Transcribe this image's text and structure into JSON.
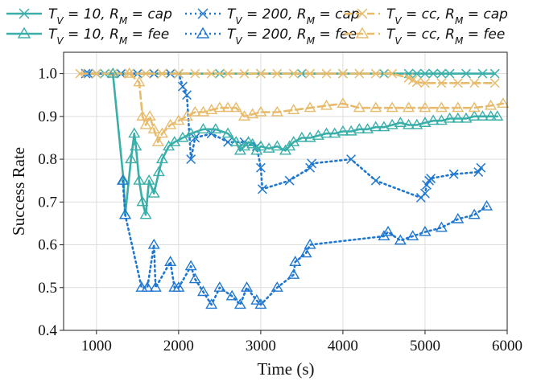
{
  "chart_data": {
    "type": "line",
    "xlabel": "Time (s)",
    "ylabel": "Success Rate",
    "xlim": [
      600,
      6000
    ],
    "ylim": [
      0.4,
      1.05
    ],
    "xticks": [
      1000,
      2000,
      3000,
      4000,
      5000,
      6000
    ],
    "yticks": [
      0.4,
      0.5,
      0.6,
      0.7,
      0.8,
      0.9,
      1.0
    ],
    "xtick_labels": [
      "1000",
      "2000",
      "3000",
      "4000",
      "5000",
      "6000"
    ],
    "ytick_labels": [
      "0.4",
      "0.5",
      "0.6",
      "0.7",
      "0.8",
      "0.9",
      "1.0"
    ],
    "grid": true,
    "legend_position": "top",
    "series": [
      {
        "name": "T_V = 10, R_M = cap",
        "legend": {
          "t": "10",
          "r": "cap"
        },
        "color": "#3aafa9",
        "linestyle": "solid",
        "marker": "x",
        "x": [
          900,
          1000,
          1100,
          1200,
          1300,
          1500,
          1700,
          2000,
          2500,
          3000,
          3500,
          4000,
          4500,
          4800,
          4900,
          5000,
          5100,
          5200,
          5300,
          5500,
          5700,
          5850
        ],
        "y": [
          1.0,
          1.0,
          1.0,
          1.0,
          1.0,
          1.0,
          1.0,
          1.0,
          1.0,
          1.0,
          1.0,
          1.0,
          1.0,
          1.0,
          1.0,
          1.0,
          1.0,
          1.0,
          1.0,
          1.0,
          1.0,
          1.0
        ]
      },
      {
        "name": "T_V = 200, R_M = cap",
        "legend": {
          "t": "200",
          "r": "cap"
        },
        "color": "#1f77d0",
        "linestyle": "dotted",
        "marker": "x",
        "x": [
          870,
          900,
          1000,
          1300,
          1500,
          1700,
          1900,
          2000,
          2050,
          2100,
          2150,
          2200,
          2400,
          2600,
          2800,
          2950,
          3000,
          3020,
          3350,
          3600,
          3620,
          4100,
          4400,
          4950,
          5000,
          5020,
          5050,
          5070,
          5350,
          5650,
          5680
        ],
        "y": [
          1.0,
          1.0,
          1.0,
          1.0,
          1.0,
          1.0,
          1.0,
          1.0,
          0.97,
          0.95,
          0.8,
          0.85,
          0.86,
          0.84,
          0.84,
          0.83,
          0.78,
          0.73,
          0.75,
          0.78,
          0.79,
          0.8,
          0.75,
          0.71,
          0.72,
          0.74,
          0.75,
          0.755,
          0.765,
          0.77,
          0.78
        ]
      },
      {
        "name": "T_V = cc, R_M = cap",
        "legend": {
          "t": "cc",
          "r": "cap"
        },
        "color": "#e7bb6b",
        "linestyle": "dashed",
        "marker": "x",
        "x": [
          800,
          1000,
          1200,
          1400,
          1600,
          1800,
          2000,
          2200,
          2400,
          2600,
          2800,
          3000,
          3200,
          3400,
          3600,
          3800,
          4000,
          4200,
          4400,
          4600,
          4800,
          4850,
          4900,
          5000,
          5200,
          5400,
          5600,
          5850
        ],
        "y": [
          1.0,
          1.0,
          1.0,
          1.0,
          1.0,
          1.0,
          1.0,
          1.0,
          1.0,
          1.0,
          1.0,
          1.0,
          1.0,
          1.0,
          1.0,
          1.0,
          1.0,
          1.0,
          1.0,
          1.0,
          0.99,
          0.985,
          0.98,
          0.978,
          0.978,
          0.978,
          0.978,
          0.978
        ]
      },
      {
        "name": "T_V = 10, R_M = fee",
        "legend": {
          "t": "10",
          "r": "fee"
        },
        "color": "#3aafa9",
        "linestyle": "solid",
        "marker": "triangle",
        "x": [
          1200,
          1330,
          1350,
          1420,
          1460,
          1480,
          1520,
          1560,
          1600,
          1640,
          1700,
          1760,
          1800,
          1880,
          1950,
          2050,
          2150,
          2300,
          2450,
          2600,
          2700,
          2750,
          2800,
          2850,
          2900,
          2950,
          3000,
          3100,
          3200,
          3300,
          3350,
          3400,
          3500,
          3600,
          3700,
          3800,
          3900,
          4000,
          4100,
          4200,
          4300,
          4400,
          4500,
          4600,
          4700,
          4800,
          4900,
          5000,
          5100,
          5200,
          5300,
          5400,
          5500,
          5600,
          5700,
          5800,
          5880
        ],
        "y": [
          1.0,
          0.75,
          0.67,
          0.8,
          0.86,
          0.83,
          0.75,
          0.7,
          0.67,
          0.75,
          0.72,
          0.77,
          0.8,
          0.83,
          0.84,
          0.85,
          0.86,
          0.87,
          0.87,
          0.86,
          0.84,
          0.82,
          0.83,
          0.84,
          0.835,
          0.82,
          0.83,
          0.825,
          0.83,
          0.82,
          0.83,
          0.84,
          0.85,
          0.85,
          0.855,
          0.86,
          0.86,
          0.865,
          0.865,
          0.87,
          0.87,
          0.875,
          0.875,
          0.88,
          0.885,
          0.88,
          0.88,
          0.885,
          0.89,
          0.89,
          0.895,
          0.895,
          0.895,
          0.9,
          0.9,
          0.9,
          0.9
        ]
      },
      {
        "name": "T_V = 200, R_M = fee",
        "legend": {
          "t": "200",
          "r": "fee"
        },
        "color": "#1f77d0",
        "linestyle": "dotted",
        "marker": "triangle",
        "x": [
          1320,
          1350,
          1550,
          1620,
          1700,
          1720,
          1900,
          1950,
          2000,
          2150,
          2200,
          2300,
          2400,
          2500,
          2650,
          2750,
          2830,
          2950,
          3000,
          3200,
          3400,
          3420,
          3550,
          3600,
          4500,
          4550,
          4700,
          4850,
          5000,
          5200,
          5400,
          5600,
          5750
        ],
        "y": [
          0.75,
          0.67,
          0.5,
          0.5,
          0.6,
          0.5,
          0.56,
          0.5,
          0.5,
          0.55,
          0.52,
          0.49,
          0.46,
          0.5,
          0.48,
          0.46,
          0.5,
          0.47,
          0.46,
          0.5,
          0.53,
          0.56,
          0.58,
          0.6,
          0.62,
          0.63,
          0.61,
          0.62,
          0.63,
          0.64,
          0.66,
          0.67,
          0.69
        ]
      },
      {
        "name": "T_V = cc, R_M = fee",
        "legend": {
          "t": "cc",
          "r": "fee"
        },
        "color": "#e7bb6b",
        "linestyle": "dashed",
        "marker": "triangle",
        "x": [
          1400,
          1520,
          1560,
          1600,
          1650,
          1700,
          1750,
          1800,
          1900,
          2000,
          2100,
          2200,
          2300,
          2400,
          2500,
          2600,
          2700,
          2800,
          2900,
          3000,
          3200,
          3400,
          3600,
          3800,
          4000,
          4200,
          4400,
          4600,
          4800,
          5000,
          5200,
          5400,
          5600,
          5800,
          5950
        ],
        "y": [
          1.0,
          0.98,
          0.9,
          0.88,
          0.9,
          0.87,
          0.84,
          0.86,
          0.88,
          0.89,
          0.9,
          0.91,
          0.91,
          0.915,
          0.92,
          0.92,
          0.92,
          0.9,
          0.905,
          0.91,
          0.91,
          0.915,
          0.92,
          0.925,
          0.93,
          0.92,
          0.92,
          0.92,
          0.92,
          0.92,
          0.92,
          0.92,
          0.92,
          0.925,
          0.93
        ]
      }
    ]
  }
}
